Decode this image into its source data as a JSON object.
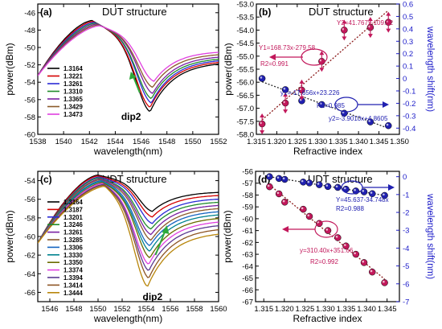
{
  "chart_data": [
    {
      "panel": "(a)",
      "type": "line",
      "title": "DUT structure",
      "xlabel": "wavelength(nm)",
      "ylabel": "power(dBm)",
      "xlim": [
        1538,
        1552
      ],
      "ylim": [
        -60,
        -45
      ],
      "xticks": [
        1538,
        1540,
        1542,
        1544,
        1546,
        1548,
        1550,
        1552
      ],
      "yticks": [
        -46,
        -48,
        -50,
        -52,
        -54,
        -56,
        -58,
        -60
      ],
      "annotation": "dip2",
      "legend_position": "left",
      "series": [
        {
          "name": "1.3164",
          "color": "#000000",
          "dip_x": 1546.7,
          "dip_y": -57.4,
          "peak_x": 1542.2,
          "peak_y": -46.9
        },
        {
          "name": "1.3221",
          "color": "#d40000",
          "dip_x": 1546.7,
          "dip_y": -56.9,
          "peak_x": 1542.3,
          "peak_y": -47.0
        },
        {
          "name": "1.3261",
          "color": "#2b2bd6",
          "dip_x": 1546.8,
          "dip_y": -56.4,
          "peak_x": 1542.4,
          "peak_y": -47.1
        },
        {
          "name": "1.3310",
          "color": "#1f8c2a",
          "dip_x": 1546.8,
          "dip_y": -55.9,
          "peak_x": 1542.5,
          "peak_y": -47.2
        },
        {
          "name": "1.3365",
          "color": "#7a1fa2",
          "dip_x": 1546.9,
          "dip_y": -55.3,
          "peak_x": 1542.6,
          "peak_y": -47.3
        },
        {
          "name": "1.3429",
          "color": "#8b5a2b",
          "dip_x": 1546.9,
          "dip_y": -54.6,
          "peak_x": 1542.7,
          "peak_y": -47.4
        },
        {
          "name": "1.3473",
          "color": "#e040e0",
          "dip_x": 1547.0,
          "dip_y": -53.9,
          "peak_x": 1542.8,
          "peak_y": -47.5
        }
      ]
    },
    {
      "panel": "(b)",
      "type": "scatter",
      "title": "DUT structure",
      "xlabel": "Refractive index",
      "ylabel": "power(dBm)",
      "ylabel_right": "wavelength shift(nm)",
      "xlim": [
        1.315,
        1.35
      ],
      "ylim": [
        -58,
        -53
      ],
      "ylim_right": [
        -0.45,
        0.6
      ],
      "xticks": [
        1.315,
        1.32,
        1.325,
        1.33,
        1.335,
        1.34,
        1.345,
        1.35
      ],
      "yticks": [
        -53.0,
        -53.5,
        -54.0,
        -54.5,
        -55.0,
        -55.5,
        -56.0,
        -56.5,
        -57.0,
        -57.5,
        -58.0
      ],
      "yticks_right": [
        0.6,
        0.5,
        0.4,
        0.3,
        0.2,
        0.1,
        0.0,
        -0.1,
        -0.2,
        -0.3,
        -0.4
      ],
      "x": [
        1.3164,
        1.3221,
        1.3261,
        1.331,
        1.3365,
        1.3429,
        1.3473
      ],
      "series": [
        {
          "name": "power",
          "axis": "left",
          "color": "#c2185b",
          "values": [
            -57.6,
            -56.8,
            -56.3,
            -55.2,
            -54.0,
            -53.9,
            -53.7
          ]
        },
        {
          "name": "wavelength shift",
          "axis": "right",
          "color": "#2020b0",
          "values": [
            0.0,
            -0.09,
            -0.18,
            -0.21,
            -0.28,
            -0.35,
            -0.38
          ]
        }
      ],
      "fits": [
        {
          "text": "Y2=41.767x-109.92",
          "color": "#c2185b"
        },
        {
          "text": "Y1=168.73x-279.58",
          "color": "#c2185b"
        },
        {
          "text": "R2=0.991",
          "color": "#c2185b"
        },
        {
          "text": "y1=-17.656x+23.226",
          "color": "#2020b0"
        },
        {
          "text": "R2=0.985",
          "color": "#2020b0"
        },
        {
          "text": "y2=-3.9010x+4.8605",
          "color": "#2020b0"
        }
      ]
    },
    {
      "panel": "(c)",
      "type": "line",
      "title": "UDT structure",
      "xlabel": "wavelength(nm)",
      "ylabel": "power(dBm)",
      "xlim": [
        1545,
        1560
      ],
      "ylim": [
        -67,
        -53
      ],
      "xticks": [
        1546,
        1548,
        1550,
        1552,
        1554,
        1556,
        1558,
        1560
      ],
      "yticks": [
        -54,
        -56,
        -58,
        -60,
        -62,
        -64,
        -66
      ],
      "annotation": "dip2",
      "legend_position": "left",
      "series": [
        {
          "name": "1.3164",
          "color": "#000000",
          "dip_x": 1554.5,
          "dip_y": -57.3,
          "peak_x": 1550.0,
          "peak_y": -53.4
        },
        {
          "name": "1.3187",
          "color": "#d40000",
          "dip_x": 1554.5,
          "dip_y": -57.9,
          "peak_x": 1550.0,
          "peak_y": -53.5
        },
        {
          "name": "1.3201",
          "color": "#2b2bd6",
          "dip_x": 1554.5,
          "dip_y": -58.6,
          "peak_x": 1550.1,
          "peak_y": -53.6
        },
        {
          "name": "1.3246",
          "color": "#1f8c2a",
          "dip_x": 1554.4,
          "dip_y": -59.2,
          "peak_x": 1550.1,
          "peak_y": -53.7
        },
        {
          "name": "1.3261",
          "color": "#7a1fa2",
          "dip_x": 1554.4,
          "dip_y": -59.8,
          "peak_x": 1550.2,
          "peak_y": -53.8
        },
        {
          "name": "1.3285",
          "color": "#8b5a2b",
          "dip_x": 1554.4,
          "dip_y": -60.4,
          "peak_x": 1550.2,
          "peak_y": -53.9
        },
        {
          "name": "1.3306",
          "color": "#1565c0",
          "dip_x": 1554.3,
          "dip_y": -61.0,
          "peak_x": 1550.3,
          "peak_y": -54.0
        },
        {
          "name": "1.3330",
          "color": "#00838f",
          "dip_x": 1554.3,
          "dip_y": -61.6,
          "peak_x": 1550.3,
          "peak_y": -54.1
        },
        {
          "name": "1.3350",
          "color": "#6a6a00",
          "dip_x": 1554.3,
          "dip_y": -62.3,
          "peak_x": 1550.4,
          "peak_y": -54.2
        },
        {
          "name": "1.3374",
          "color": "#e040e0",
          "dip_x": 1554.2,
          "dip_y": -63.0,
          "peak_x": 1550.4,
          "peak_y": -54.3
        },
        {
          "name": "1.3394",
          "color": "#5c3a91",
          "dip_x": 1554.2,
          "dip_y": -63.7,
          "peak_x": 1550.5,
          "peak_y": -54.4
        },
        {
          "name": "1.3414",
          "color": "#8d5524",
          "dip_x": 1554.2,
          "dip_y": -64.5,
          "peak_x": 1550.5,
          "peak_y": -54.5
        },
        {
          "name": "1.3444",
          "color": "#b8860b",
          "dip_x": 1554.1,
          "dip_y": -65.4,
          "peak_x": 1550.6,
          "peak_y": -54.6
        }
      ]
    },
    {
      "panel": "(d)",
      "type": "scatter",
      "title": "UDT structure",
      "xlabel": "Refractive index",
      "ylabel": "power(dBm)",
      "ylabel_right": "wavelength shift(nm)",
      "xlim": [
        1.313,
        1.348
      ],
      "ylim": [
        -67,
        -56
      ],
      "ylim_right": [
        -7,
        0.3
      ],
      "xticks": [
        1.315,
        1.32,
        1.325,
        1.33,
        1.335,
        1.34,
        1.345
      ],
      "yticks": [
        -56,
        -57,
        -58,
        -59,
        -60,
        -61,
        -62,
        -63,
        -64,
        -65,
        -66,
        -67
      ],
      "yticks_right": [
        0,
        -1,
        -2,
        -3,
        -4,
        -5,
        -6,
        -7
      ],
      "x": [
        1.3164,
        1.3187,
        1.3201,
        1.3246,
        1.3261,
        1.3285,
        1.3306,
        1.333,
        1.335,
        1.3374,
        1.3394,
        1.3414,
        1.3444
      ],
      "series": [
        {
          "name": "power",
          "axis": "left",
          "color": "#c2185b",
          "values": [
            -57.3,
            -57.9,
            -58.6,
            -59.2,
            -59.8,
            -60.4,
            -61.0,
            -61.6,
            -62.3,
            -63.0,
            -63.7,
            -64.5,
            -65.4
          ]
        },
        {
          "name": "wavelength shift",
          "axis": "right",
          "color": "#2020b0",
          "values": [
            0.0,
            -0.1,
            -0.15,
            -0.3,
            -0.35,
            -0.45,
            -0.55,
            -0.6,
            -0.7,
            -0.8,
            -0.85,
            -0.95,
            -1.05
          ]
        }
      ],
      "fits": [
        {
          "text": "Y=45.637-34.748x",
          "color": "#2020b0"
        },
        {
          "text": "R2=0.988",
          "color": "#2020b0"
        },
        {
          "text": "y=310.40x+351.66",
          "color": "#c2185b"
        },
        {
          "text": "R2=0.992",
          "color": "#c2185b"
        }
      ]
    }
  ]
}
